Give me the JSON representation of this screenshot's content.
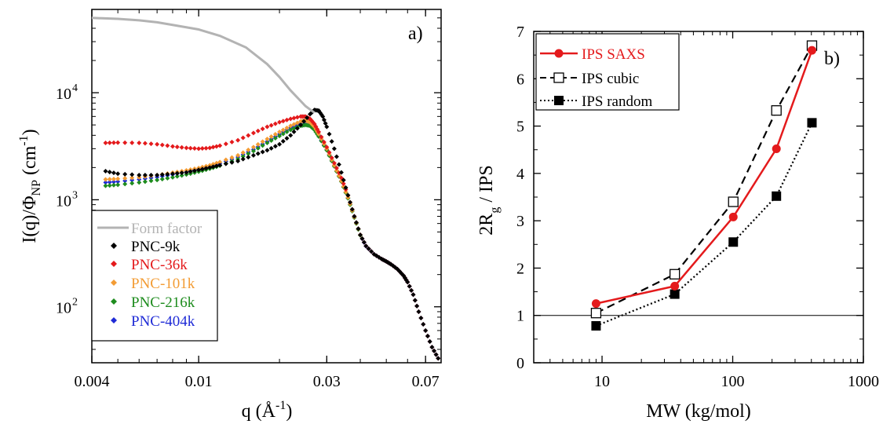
{
  "chart_data": [
    {
      "type": "scatter",
      "panel_label": "a)",
      "xscale": "log",
      "yscale": "log",
      "xlim": [
        0.004,
        0.08
      ],
      "ylim": [
        30,
        60000
      ],
      "xticks": [
        0.004,
        0.01,
        0.03,
        0.07
      ],
      "xtick_labels": [
        "0.004",
        "0.01",
        "0.03",
        "0.07"
      ],
      "yticks": [
        100,
        1000,
        10000
      ],
      "ytick_labels": [
        "10",
        "10",
        "10"
      ],
      "ytick_exponents": [
        "2",
        "3",
        "4"
      ],
      "xlabel_main": "q (Å",
      "xlabel_sup": "-1",
      "xlabel_end": ")",
      "ylabel_main": "I(q)/Φ",
      "ylabel_sub": "NP",
      "ylabel_unit": "(cm",
      "ylabel_sup": "-1",
      "ylabel_end": ")",
      "legend_position": "lower-left",
      "series": [
        {
          "name": "Form factor",
          "color": "#b3b3b3",
          "style": "line",
          "x": [
            0.004,
            0.005,
            0.006,
            0.007,
            0.008,
            0.01,
            0.012,
            0.015,
            0.018,
            0.02,
            0.022,
            0.025,
            0.027
          ],
          "y": [
            50000,
            49000,
            47500,
            45500,
            43000,
            39000,
            34000,
            26500,
            18500,
            14000,
            10500,
            7500,
            6500
          ]
        },
        {
          "name": "PNC-9k",
          "color": "#000000",
          "style": "dots",
          "x": [
            0.0045,
            0.005,
            0.006,
            0.007,
            0.008,
            0.009,
            0.01,
            0.011,
            0.012,
            0.014,
            0.016,
            0.018,
            0.02,
            0.022,
            0.024,
            0.026,
            0.027,
            0.028,
            0.029,
            0.03,
            0.032,
            0.034,
            0.036,
            0.038,
            0.04,
            0.042,
            0.045,
            0.048,
            0.05,
            0.052,
            0.055,
            0.058,
            0.06,
            0.063,
            0.066,
            0.07,
            0.074,
            0.078
          ],
          "y": [
            1850,
            1750,
            1700,
            1700,
            1750,
            1800,
            1900,
            2000,
            2100,
            2300,
            2600,
            2900,
            3300,
            4000,
            5000,
            6300,
            6900,
            6800,
            6000,
            4800,
            3000,
            1800,
            1100,
            700,
            470,
            370,
            310,
            280,
            265,
            250,
            225,
            195,
            170,
            130,
            90,
            60,
            42,
            33
          ]
        },
        {
          "name": "PNC-36k",
          "color": "#e41a1c",
          "style": "dots",
          "x": [
            0.0045,
            0.005,
            0.006,
            0.007,
            0.008,
            0.009,
            0.01,
            0.011,
            0.012,
            0.014,
            0.016,
            0.018,
            0.02,
            0.022,
            0.024,
            0.025,
            0.026,
            0.027,
            0.028,
            0.03,
            0.032,
            0.034,
            0.036,
            0.038,
            0.04,
            0.042,
            0.045,
            0.048,
            0.05,
            0.052,
            0.055,
            0.058,
            0.06,
            0.063,
            0.066,
            0.07,
            0.074,
            0.078
          ],
          "y": [
            3400,
            3420,
            3400,
            3300,
            3150,
            3050,
            3000,
            3050,
            3200,
            3600,
            4200,
            4800,
            5300,
            5700,
            6000,
            6000,
            5700,
            5100,
            4300,
            3100,
            2200,
            1600,
            1100,
            700,
            470,
            370,
            310,
            280,
            265,
            250,
            225,
            195,
            170,
            130,
            90,
            60,
            42,
            33
          ]
        },
        {
          "name": "PNC-101k",
          "color": "#f39c34",
          "style": "dots",
          "x": [
            0.0045,
            0.005,
            0.006,
            0.007,
            0.008,
            0.009,
            0.01,
            0.011,
            0.012,
            0.014,
            0.016,
            0.018,
            0.02,
            0.022,
            0.024,
            0.025,
            0.026,
            0.027,
            0.028,
            0.03,
            0.032,
            0.034,
            0.036,
            0.038,
            0.04
          ],
          "y": [
            1550,
            1570,
            1620,
            1700,
            1790,
            1880,
            1980,
            2100,
            2250,
            2600,
            3100,
            3700,
            4300,
            4900,
            5400,
            5500,
            5300,
            4800,
            4100,
            3000,
            2100,
            1500,
            1050,
            690,
            470
          ]
        },
        {
          "name": "PNC-216k",
          "color": "#1e8c1e",
          "style": "dots",
          "x": [
            0.0045,
            0.005,
            0.006,
            0.007,
            0.008,
            0.009,
            0.01,
            0.011,
            0.012,
            0.014,
            0.016,
            0.018,
            0.02,
            0.022,
            0.024,
            0.025,
            0.026,
            0.027,
            0.028,
            0.03,
            0.032,
            0.034,
            0.036,
            0.038,
            0.04
          ],
          "y": [
            1350,
            1380,
            1450,
            1530,
            1620,
            1720,
            1830,
            1950,
            2080,
            2400,
            2850,
            3400,
            3950,
            4500,
            4900,
            5000,
            4900,
            4500,
            3900,
            2900,
            2050,
            1480,
            1030,
            680,
            465
          ]
        },
        {
          "name": "PNC-404k",
          "color": "#1f2bd6",
          "style": "dots",
          "x": [
            0.0045,
            0.005,
            0.006,
            0.007,
            0.008,
            0.009,
            0.01,
            0.011,
            0.012,
            0.014,
            0.016,
            0.018,
            0.02,
            0.022,
            0.024,
            0.025,
            0.026,
            0.027,
            0.028,
            0.03,
            0.032,
            0.034,
            0.036,
            0.038,
            0.04,
            0.042,
            0.045,
            0.048,
            0.05,
            0.052,
            0.055,
            0.058,
            0.06,
            0.063,
            0.066,
            0.07,
            0.074,
            0.078
          ],
          "y": [
            1450,
            1480,
            1550,
            1630,
            1720,
            1820,
            1930,
            2050,
            2180,
            2500,
            2950,
            3500,
            4100,
            4700,
            5100,
            5200,
            5050,
            4650,
            4000,
            2950,
            2100,
            1500,
            1040,
            690,
            468,
            368,
            310,
            280,
            265,
            250,
            225,
            195,
            170,
            130,
            90,
            60,
            42,
            33
          ]
        }
      ]
    },
    {
      "type": "line",
      "panel_label": "b)",
      "xscale": "log",
      "yscale": "linear",
      "xlim": [
        3,
        1000
      ],
      "ylim": [
        0,
        7
      ],
      "xticks": [
        10,
        100,
        1000
      ],
      "xtick_labels": [
        "10",
        "100",
        "1000"
      ],
      "yticks": [
        0,
        1,
        2,
        3,
        4,
        5,
        6,
        7
      ],
      "ytick_labels": [
        "0",
        "1",
        "2",
        "3",
        "4",
        "5",
        "6",
        "7"
      ],
      "xlabel": "MW (kg/mol)",
      "ylabel_main": "2R",
      "ylabel_sub": "g",
      "ylabel_end": " / IPS",
      "reference_line_y": 1,
      "legend_position": "top-left",
      "series": [
        {
          "name": "IPS SAXS",
          "color": "#e41a1c",
          "marker": "filled-circle",
          "linestyle": "solid",
          "x": [
            9,
            36,
            101,
            216,
            404
          ],
          "y": [
            1.25,
            1.62,
            3.08,
            4.52,
            6.6
          ]
        },
        {
          "name": "IPS cubic",
          "color": "#000000",
          "marker": "open-square",
          "linestyle": "dashed",
          "x": [
            9,
            36,
            101,
            216,
            404
          ],
          "y": [
            1.05,
            1.87,
            3.4,
            5.33,
            6.7
          ]
        },
        {
          "name": "IPS random",
          "color": "#000000",
          "marker": "filled-square",
          "linestyle": "dotted",
          "x": [
            9,
            36,
            101,
            216,
            404
          ],
          "y": [
            0.78,
            1.45,
            2.55,
            3.52,
            5.07
          ]
        }
      ]
    }
  ]
}
